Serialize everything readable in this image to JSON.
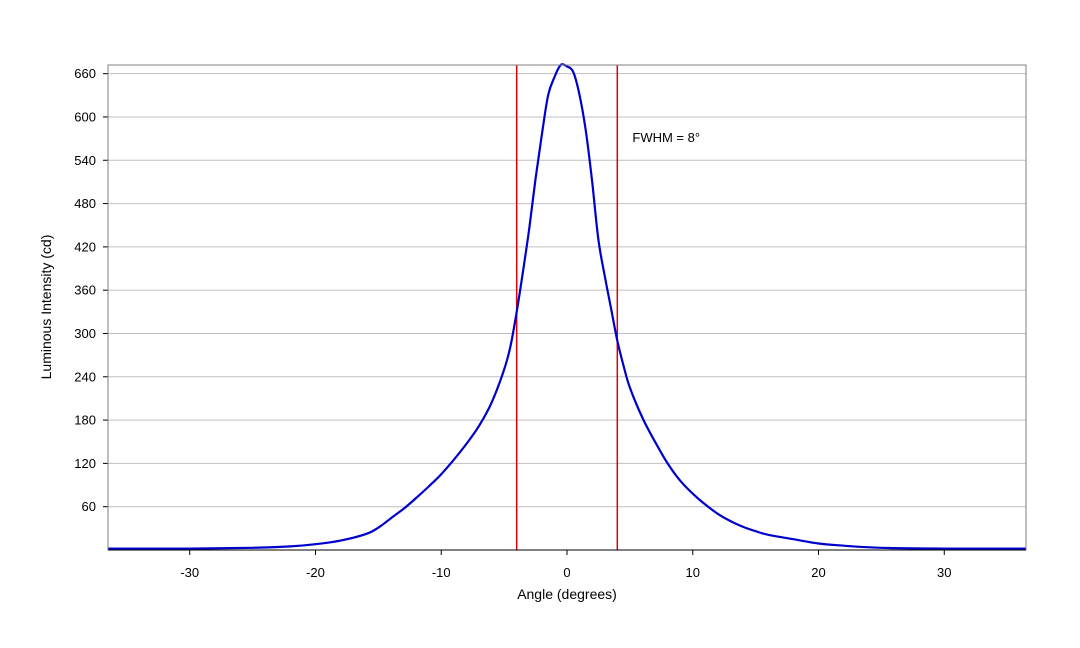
{
  "chart_data": {
    "type": "line",
    "title": "",
    "xlabel": "Angle (degrees)",
    "ylabel": "Luminous Intensity (cd)",
    "xlim": [
      -36.5,
      36.5
    ],
    "ylim": [
      0,
      672
    ],
    "xticks": [
      -30,
      -20,
      -10,
      0,
      10,
      20,
      30
    ],
    "xtick_labels": [
      "-30",
      "-20",
      "-10",
      "0",
      "10",
      "20",
      "30"
    ],
    "yticks": [
      60,
      120,
      180,
      240,
      300,
      360,
      420,
      480,
      540,
      600,
      660
    ],
    "ytick_labels": [
      "60",
      "120",
      "180",
      "240",
      "300",
      "360",
      "420",
      "480",
      "540",
      "600",
      "660"
    ],
    "grid": "horizontal",
    "series": [
      {
        "color": "#0000cc",
        "x": [
          -36.5,
          -30,
          -25,
          -22,
          -20,
          -18,
          -16,
          -15,
          -14,
          -13,
          -12,
          -11,
          -10,
          -9,
          -8,
          -7,
          -6,
          -5,
          -4.5,
          -4,
          -3.5,
          -3,
          -2.5,
          -2,
          -1.5,
          -1,
          -0.5,
          0,
          0.5,
          1,
          1.5,
          2,
          2.5,
          3,
          3.5,
          4,
          4.5,
          5,
          6,
          7,
          8,
          9,
          10,
          11,
          12,
          13,
          14,
          15,
          16,
          18,
          20,
          22,
          25,
          30,
          36.5
        ],
        "y": [
          2,
          2,
          3,
          5,
          8,
          13,
          22,
          31,
          44,
          57,
          72,
          88,
          105,
          125,
          147,
          172,
          204,
          250,
          282,
          330,
          386,
          446,
          515,
          575,
          630,
          655,
          672,
          670,
          662,
          630,
          580,
          510,
          430,
          380,
          335,
          290,
          255,
          225,
          183,
          150,
          120,
          96,
          78,
          63,
          50,
          40,
          32,
          26,
          21,
          15,
          9,
          6,
          3,
          2,
          2
        ]
      }
    ],
    "vlines": [
      {
        "x": -4,
        "color": "#e00000"
      },
      {
        "x": 4,
        "color": "#e00000"
      }
    ],
    "annotations": [
      {
        "text": "FWHM = 8°",
        "x": 5.2,
        "y": 565
      }
    ]
  }
}
